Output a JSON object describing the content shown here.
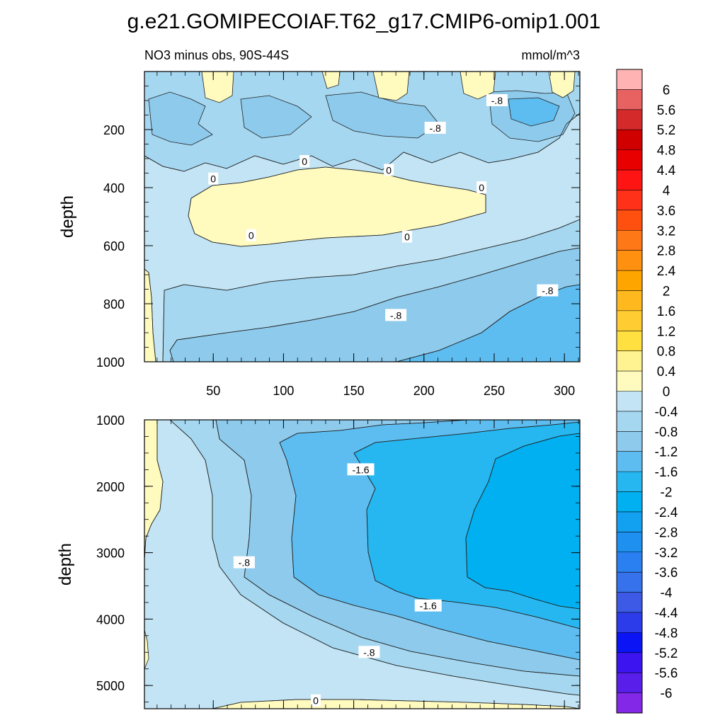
{
  "chart_data": {
    "type": "contour",
    "title": "g.e21.GOMIPECOIAF.T62_g17.CMIP6-omip1.001",
    "subtitle_left": "NO3 minus obs, 90S-44S",
    "subtitle_right": "mmol/m^3",
    "panels": [
      {
        "name": "upper",
        "ylabel": "depth",
        "ylim": [
          1000,
          0
        ],
        "xlim": [
          1,
          311
        ],
        "y_ticks": [
          200,
          400,
          600,
          800,
          1000
        ],
        "x_ticks": [
          50,
          100,
          150,
          200,
          250,
          300
        ],
        "contour_labels": [
          {
            "text": "-.8",
            "x": 252,
            "y": 100
          },
          {
            "text": "-.8",
            "x": 208,
            "y": 195
          },
          {
            "text": "0",
            "x": 115,
            "y": 310
          },
          {
            "text": "0",
            "x": 175,
            "y": 340
          },
          {
            "text": "0",
            "x": 50,
            "y": 370
          },
          {
            "text": "0",
            "x": 241,
            "y": 400
          },
          {
            "text": "0",
            "x": 77,
            "y": 565
          },
          {
            "text": "0",
            "x": 188,
            "y": 570
          },
          {
            "text": "-.8",
            "x": 288,
            "y": 755
          },
          {
            "text": "-.8",
            "x": 180,
            "y": 840
          }
        ]
      },
      {
        "name": "lower",
        "ylabel": "depth",
        "ylim": [
          5350,
          1000
        ],
        "xlim": [
          1,
          311
        ],
        "y_ticks": [
          1000,
          2000,
          3000,
          4000,
          5000
        ],
        "contour_labels": [
          {
            "text": "-1.6",
            "x": 155,
            "y": 1750
          },
          {
            "text": "-.8",
            "x": 72,
            "y": 3150
          },
          {
            "text": "-1.6",
            "x": 203,
            "y": 3800
          },
          {
            "text": "-.8",
            "x": 161,
            "y": 4500
          },
          {
            "text": "0",
            "x": 123,
            "y": 5230
          }
        ]
      }
    ],
    "colorbar": {
      "levels": [
        "6",
        "5.6",
        "5.2",
        "4.8",
        "4.4",
        "4",
        "3.6",
        "3.2",
        "2.8",
        "2.4",
        "2",
        "1.6",
        "1.2",
        "0.8",
        "0.4",
        "0",
        "-0.4",
        "-0.8",
        "-1.2",
        "-1.6",
        "-2",
        "-2.4",
        "-2.8",
        "-3.2",
        "-3.6",
        "-4",
        "-4.4",
        "-4.8",
        "-5.2",
        "-5.6",
        "-6"
      ],
      "colors": [
        "#ffb3b3",
        "#e86262",
        "#d42a2a",
        "#d00000",
        "#e80000",
        "#ff1414",
        "#ff3219",
        "#ff5010",
        "#ff7818",
        "#ff9010",
        "#ffa500",
        "#ffb81e",
        "#ffcc32",
        "#ffe040",
        "#fff290",
        "#fffabe",
        "#c2e4f4",
        "#a6d7f0",
        "#8dcaec",
        "#5dbdf0",
        "#26b7f1",
        "#00b0f0",
        "#12a0f0",
        "#1e90f0",
        "#2a80f0",
        "#3572eb",
        "#3c5ae6",
        "#2d3ceb",
        "#0a14f5",
        "#3c14f0",
        "#5a1eeb",
        "#8228e6"
      ]
    }
  }
}
